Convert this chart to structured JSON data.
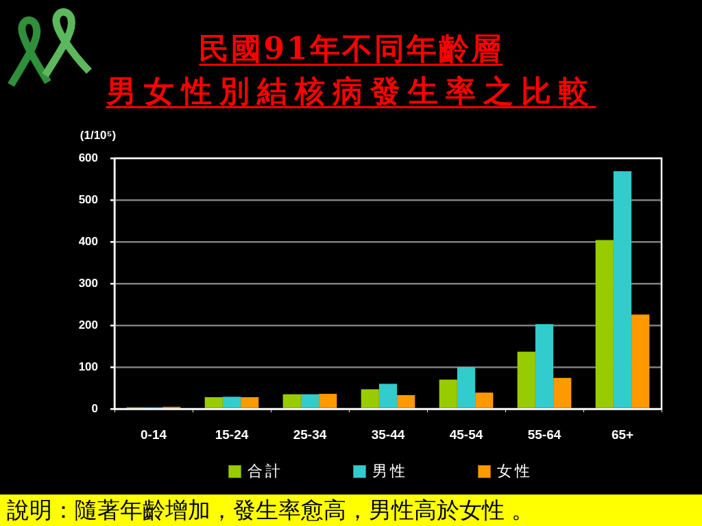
{
  "chart_data": {
    "type": "bar",
    "title": "民國91年不同年齡層",
    "subtitle": "男女性別結核病發生率之比較",
    "ylabel": "(1/10⁵)",
    "categories": [
      "0-14",
      "15-24",
      "25-34",
      "35-44",
      "45-54",
      "55-64",
      "65+"
    ],
    "series": [
      {
        "name": "合計",
        "color": "#99cc00",
        "values": [
          4,
          28,
          35,
          47,
          70,
          137,
          404
        ]
      },
      {
        "name": "男性",
        "color": "#33cccc",
        "values": [
          4,
          29,
          35,
          60,
          100,
          203,
          569
        ]
      },
      {
        "name": "女性",
        "color": "#ff9900",
        "values": [
          5,
          28,
          36,
          33,
          39,
          74,
          226
        ]
      }
    ],
    "ylim": [
      0,
      600
    ],
    "yticks": [
      0,
      100,
      200,
      300,
      400,
      500,
      600
    ],
    "grid": "y",
    "legend": "bottom",
    "annotations": [
      "說明：隨著年齡增加，發生率愈高，男性高於女性 。"
    ]
  }
}
